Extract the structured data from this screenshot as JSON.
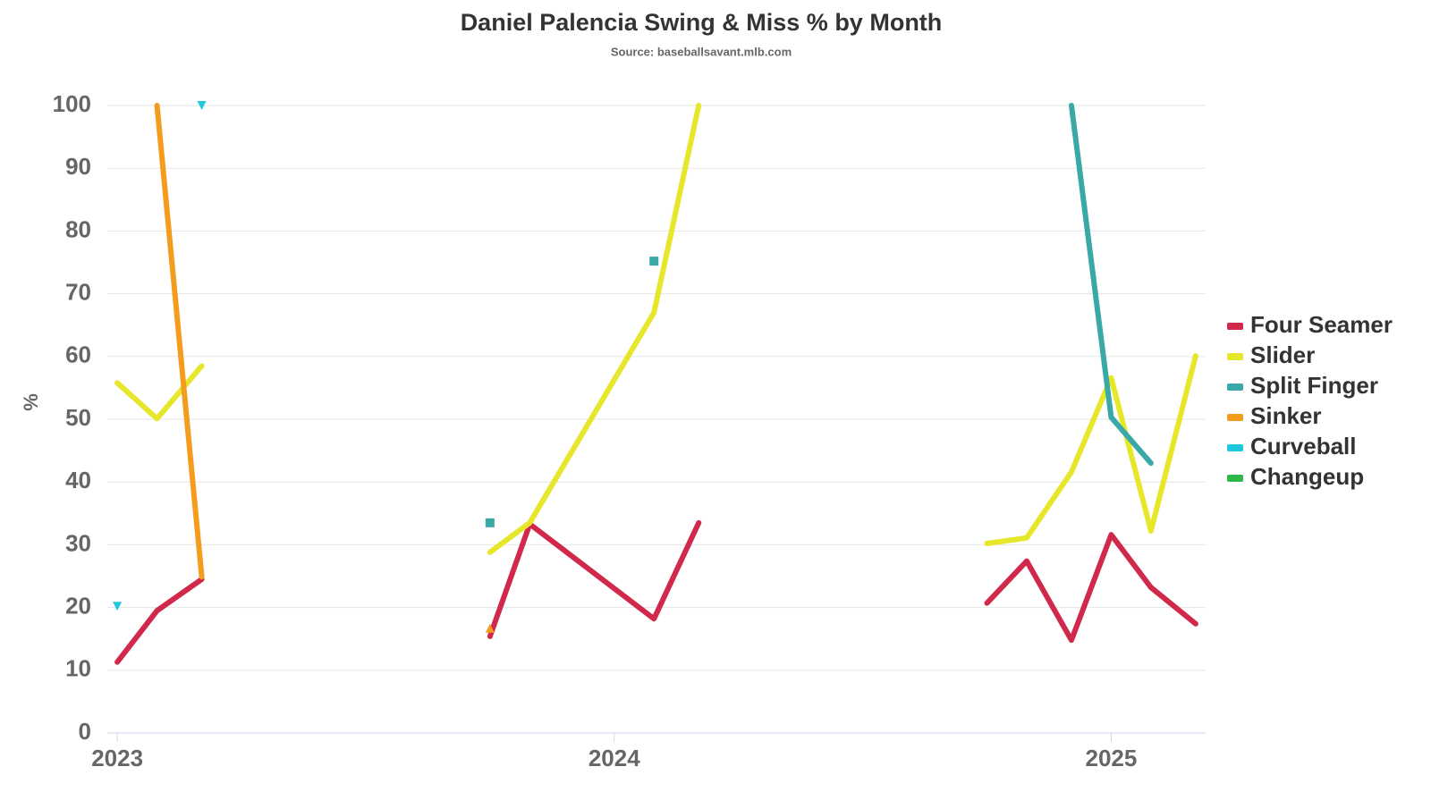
{
  "chart_data": {
    "type": "line",
    "title": "Daniel Palencia Swing & Miss % by Month",
    "subtitle": "Source: baseballsavant.mlb.com",
    "y_label": "%",
    "x": [
      2023.0,
      2023.08,
      2023.17,
      2023.25,
      2023.75,
      2023.83,
      2024.08,
      2024.17,
      2024.25,
      2024.75,
      2024.83,
      2024.92,
      2025.0,
      2025.08,
      2025.17
    ],
    "xlim": [
      2022.98,
      2025.19
    ],
    "xticks": [
      2023,
      2024,
      2025
    ],
    "ylim": [
      0,
      100
    ],
    "yticks": [
      0,
      10,
      20,
      30,
      40,
      50,
      60,
      70,
      80,
      90,
      100
    ],
    "grid": true,
    "legend": "right",
    "series": [
      {
        "name": "Four Seamer",
        "color": "#d0294b",
        "marker": "circle",
        "values": [
          11.3,
          19.5,
          24.5,
          null,
          15.4,
          33.3,
          18.2,
          33.5,
          null,
          20.7,
          27.4,
          14.8,
          31.6,
          23.2,
          17.4
        ]
      },
      {
        "name": "Slider",
        "color": "#e6e62a",
        "marker": "circle",
        "values": [
          55.8,
          50.1,
          58.5,
          null,
          28.8,
          33.5,
          67,
          100,
          null,
          30.2,
          31.1,
          41.6,
          56.6,
          32.2,
          60.1
        ]
      },
      {
        "name": "Split Finger",
        "color": "#3aa8a6",
        "marker": "square",
        "values": [
          null,
          null,
          null,
          null,
          33.5,
          null,
          75.2,
          null,
          null,
          null,
          null,
          100,
          50.3,
          43,
          null
        ]
      },
      {
        "name": "Sinker",
        "color": "#f39c1e",
        "marker": "triangle",
        "values": [
          null,
          100,
          24.9,
          null,
          16.7,
          null,
          null,
          null,
          null,
          null,
          null,
          null,
          null,
          null,
          null
        ]
      },
      {
        "name": "Curveball",
        "color": "#1fc8dc",
        "marker": "triangle-down",
        "values": [
          20.2,
          null,
          100,
          null,
          null,
          null,
          null,
          null,
          null,
          null,
          null,
          null,
          null,
          null,
          null
        ]
      },
      {
        "name": "Changeup",
        "color": "#2eb84a",
        "marker": "circle",
        "values": [
          null,
          null,
          null,
          null,
          null,
          null,
          null,
          null,
          null,
          null,
          null,
          null,
          null,
          null,
          null
        ]
      }
    ]
  }
}
